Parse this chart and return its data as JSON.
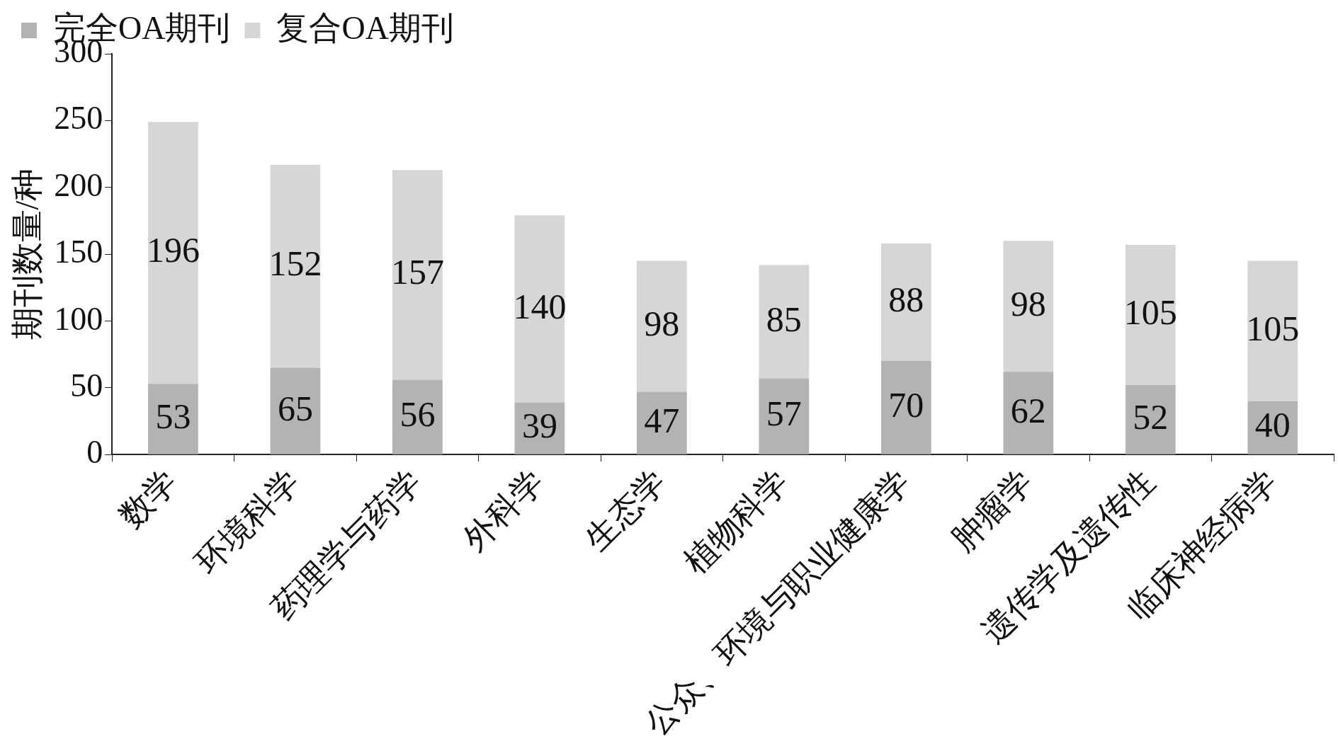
{
  "chart_data": {
    "type": "bar",
    "ylabel": "期刊数量/种",
    "categories": [
      "数学",
      "环境科学",
      "药理学与药学",
      "外科学",
      "生态学",
      "植物科学",
      "公众、环境与职业健康学",
      "肿瘤学",
      "遗传学及遗传性",
      "临床神经病学"
    ],
    "stacked": true,
    "data_labels": true,
    "legend": "top",
    "grid": false,
    "ylim": [
      0,
      300
    ],
    "yticks": [
      0,
      50,
      100,
      150,
      200,
      250,
      300
    ],
    "series": [
      {
        "name": "完全OA期刊",
        "color": "#b3b3b3",
        "values": [
          53,
          65,
          56,
          39,
          47,
          57,
          70,
          62,
          52,
          40
        ]
      },
      {
        "name": "复合OA期刊",
        "color": "#d6d6d6",
        "values": [
          196,
          152,
          157,
          140,
          98,
          85,
          88,
          98,
          105,
          105
        ]
      }
    ]
  }
}
